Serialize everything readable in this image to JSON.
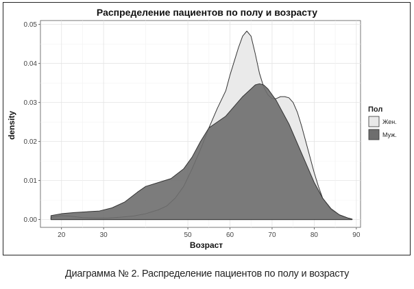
{
  "chart_data": {
    "type": "area",
    "title": "Распределение пациентов по полу и возрасту",
    "xlabel": "Возраст",
    "ylabel": "density",
    "xlim": [
      15,
      91
    ],
    "ylim": [
      -0.002,
      0.051
    ],
    "x_ticks": [
      20,
      30,
      50,
      60,
      70,
      80,
      90
    ],
    "y_ticks": [
      0.0,
      0.01,
      0.02,
      0.03,
      0.04,
      0.05
    ],
    "x_tick_labels": [
      "20",
      "30",
      "50",
      "60",
      "70",
      "80",
      "90"
    ],
    "y_tick_labels": [
      "0.00",
      "0.01",
      "0.02",
      "0.03",
      "0.04",
      "0.05"
    ],
    "grid": true,
    "legend": {
      "title": "Пол",
      "position": "right"
    },
    "series": [
      {
        "name": "Жен.",
        "color": "#e9e9e9",
        "x": [
          17.5,
          18,
          20,
          22,
          25,
          28,
          31,
          34,
          37,
          40,
          43,
          45,
          47,
          49,
          51,
          53,
          55,
          57,
          59,
          60,
          61,
          62,
          63,
          64,
          65,
          66,
          67,
          68,
          69,
          70,
          71,
          72,
          73,
          74,
          75,
          76,
          77,
          78,
          79,
          80,
          81,
          82,
          84,
          86,
          88,
          89
        ],
        "y": [
          0.0005,
          0.0007,
          0.001,
          0.0009,
          0.0005,
          0.0004,
          0.0004,
          0.0006,
          0.0009,
          0.0015,
          0.0025,
          0.0035,
          0.0055,
          0.0085,
          0.013,
          0.018,
          0.0235,
          0.0285,
          0.033,
          0.037,
          0.0405,
          0.044,
          0.047,
          0.0483,
          0.047,
          0.0425,
          0.0375,
          0.034,
          0.032,
          0.031,
          0.031,
          0.0315,
          0.0315,
          0.0312,
          0.03,
          0.0275,
          0.024,
          0.02,
          0.016,
          0.012,
          0.0085,
          0.0055,
          0.0025,
          0.0012,
          0.0004,
          0.0001
        ]
      },
      {
        "name": "Муж.",
        "color": "#6e6e6e",
        "x": [
          17.5,
          20,
          23,
          26,
          29,
          32,
          35,
          38,
          40,
          43,
          46,
          49,
          51,
          53,
          55,
          57,
          59,
          61,
          63,
          65,
          66,
          67,
          68,
          69,
          70,
          71,
          72,
          73,
          74,
          75,
          76,
          77,
          78,
          79,
          80,
          81,
          82,
          84,
          86,
          88,
          89
        ],
        "y": [
          0.001,
          0.0015,
          0.0018,
          0.002,
          0.0022,
          0.003,
          0.0045,
          0.007,
          0.0085,
          0.0095,
          0.0105,
          0.013,
          0.016,
          0.02,
          0.0235,
          0.025,
          0.0265,
          0.029,
          0.0315,
          0.0335,
          0.0345,
          0.0348,
          0.0345,
          0.0335,
          0.032,
          0.0305,
          0.0285,
          0.0265,
          0.0245,
          0.022,
          0.0195,
          0.017,
          0.0145,
          0.012,
          0.0095,
          0.0075,
          0.0055,
          0.0028,
          0.0012,
          0.0004,
          0.0001
        ]
      }
    ]
  },
  "caption": "Диаграмма № 2. Распределение пациентов по полу и возрасту"
}
